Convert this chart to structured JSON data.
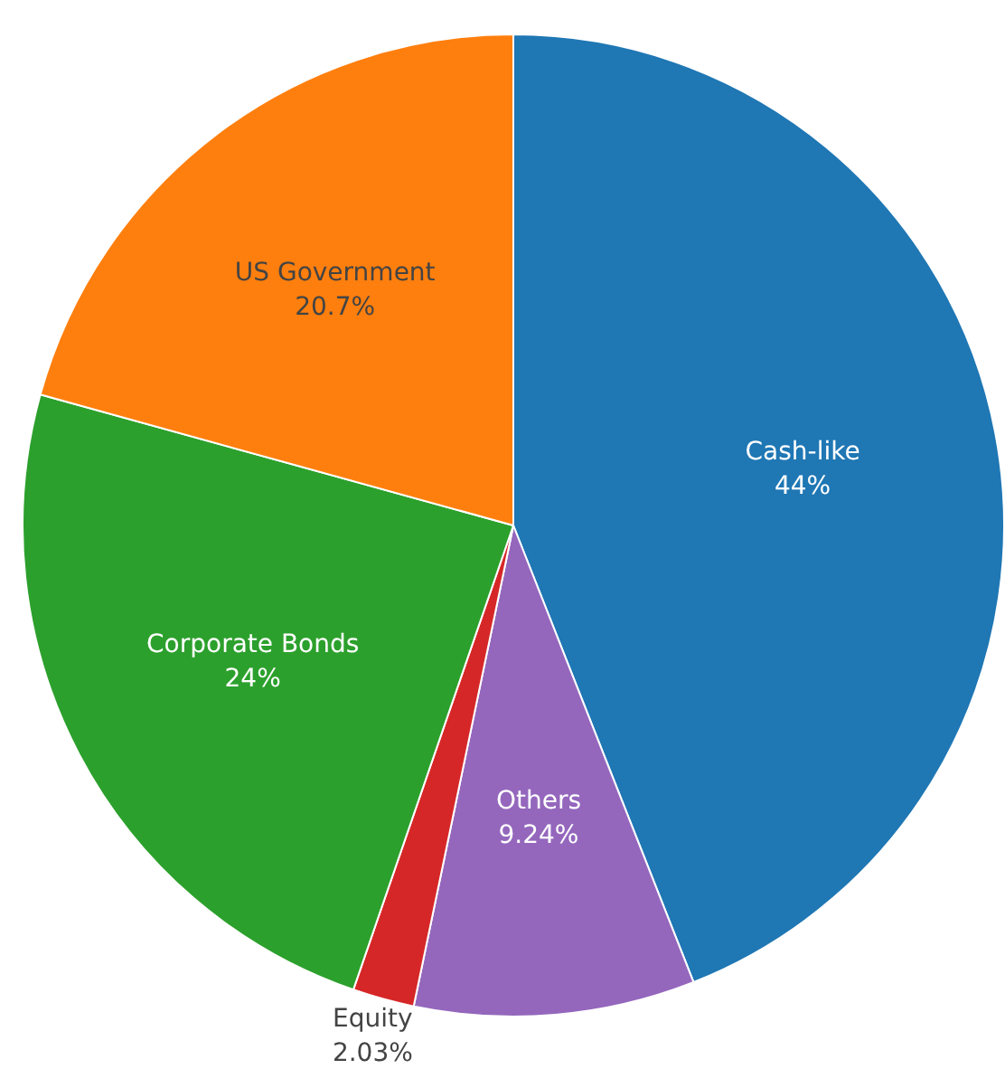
{
  "chart_data": {
    "type": "pie",
    "categories": [
      "Cash-like",
      "Others",
      "Equity",
      "Corporate Bonds",
      "US Government"
    ],
    "values": [
      44,
      9.24,
      2.03,
      24,
      20.7
    ],
    "colors": [
      "#1f77b4",
      "#9467bd",
      "#d62728",
      "#2ca02c",
      "#ff7f0e"
    ],
    "value_labels": [
      "44%",
      "9.24%",
      "2.03%",
      "24%",
      "20.7%"
    ],
    "legend": false
  }
}
